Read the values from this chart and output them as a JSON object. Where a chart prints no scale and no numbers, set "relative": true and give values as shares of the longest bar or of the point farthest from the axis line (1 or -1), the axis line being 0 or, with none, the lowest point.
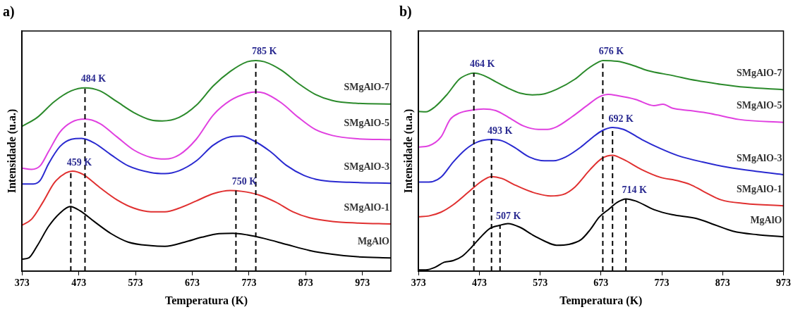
{
  "chart_data": [
    {
      "type": "line",
      "title": "a)",
      "xlabel": "Temperatura (K)",
      "ylabel": "Intensidade (u.a.)",
      "relative": true,
      "xlim": [
        373,
        1023
      ],
      "xticks": [
        373,
        473,
        573,
        673,
        773,
        873,
        973
      ],
      "legend": false,
      "grid": false,
      "marker": "none",
      "line_style": "solid",
      "series": [
        {
          "name": "SMgAlO-7",
          "color": "#2b8a2b",
          "x": [
            373,
            400,
            430,
            460,
            484,
            510,
            540,
            570,
            600,
            620,
            650,
            680,
            710,
            740,
            770,
            785,
            800,
            830,
            860,
            890,
            920,
            960,
            1023
          ],
          "values": [
            0.687,
            0.73,
            0.805,
            0.856,
            0.87,
            0.856,
            0.805,
            0.753,
            0.718,
            0.713,
            0.73,
            0.787,
            0.879,
            0.948,
            0.994,
            1.0,
            0.994,
            0.954,
            0.891,
            0.839,
            0.81,
            0.797,
            0.793
          ]
        },
        {
          "name": "SMgAlO-5",
          "color": "#e040e0",
          "x": [
            373,
            390,
            405,
            420,
            440,
            460,
            484,
            510,
            540,
            570,
            600,
            625,
            650,
            680,
            710,
            740,
            770,
            785,
            800,
            830,
            860,
            890,
            920,
            960,
            1023
          ],
          "values": [
            0.489,
            0.483,
            0.5,
            0.569,
            0.661,
            0.707,
            0.722,
            0.701,
            0.638,
            0.575,
            0.54,
            0.532,
            0.552,
            0.626,
            0.741,
            0.81,
            0.845,
            0.851,
            0.845,
            0.799,
            0.73,
            0.672,
            0.644,
            0.629,
            0.624
          ]
        },
        {
          "name": "SMgAlO-3",
          "color": "#2a2ad0",
          "x": [
            373,
            393,
            405,
            420,
            440,
            460,
            478,
            500,
            530,
            560,
            600,
            625,
            650,
            680,
            710,
            740,
            760,
            780,
            810,
            840,
            870,
            900,
            950,
            1023
          ],
          "values": [
            0.414,
            0.414,
            0.431,
            0.511,
            0.592,
            0.626,
            0.63,
            0.609,
            0.552,
            0.5,
            0.468,
            0.463,
            0.477,
            0.523,
            0.598,
            0.638,
            0.641,
            0.621,
            0.569,
            0.5,
            0.454,
            0.431,
            0.422,
            0.417
          ]
        },
        {
          "name": "SMgAlO-1",
          "color": "#e03030",
          "x": [
            373,
            390,
            410,
            430,
            450,
            462,
            480,
            510,
            540,
            570,
            600,
            625,
            650,
            680,
            710,
            740,
            760,
            790,
            820,
            850,
            880,
            920,
            960,
            1023
          ],
          "values": [
            0.218,
            0.247,
            0.328,
            0.42,
            0.466,
            0.475,
            0.46,
            0.397,
            0.339,
            0.299,
            0.282,
            0.282,
            0.299,
            0.333,
            0.368,
            0.383,
            0.379,
            0.362,
            0.328,
            0.282,
            0.253,
            0.236,
            0.229,
            0.224
          ]
        },
        {
          "name": "MgAlO",
          "color": "#000000",
          "x": [
            373,
            385,
            400,
            420,
            440,
            458,
            475,
            500,
            530,
            560,
            600,
            625,
            660,
            690,
            720,
            745,
            770,
            800,
            840,
            880,
            920,
            960,
            1023
          ],
          "values": [
            0.057,
            0.063,
            0.121,
            0.213,
            0.276,
            0.307,
            0.287,
            0.236,
            0.178,
            0.138,
            0.121,
            0.118,
            0.138,
            0.161,
            0.178,
            0.18,
            0.172,
            0.155,
            0.126,
            0.098,
            0.08,
            0.069,
            0.063
          ]
        }
      ],
      "ref_lines": [
        {
          "axis": "x",
          "value": 459,
          "line_style": "dashed",
          "color": "#000000"
        },
        {
          "axis": "x",
          "value": 484,
          "line_style": "dashed",
          "color": "#000000"
        },
        {
          "axis": "x",
          "value": 750,
          "line_style": "dashed",
          "color": "#000000"
        },
        {
          "axis": "x",
          "value": 785,
          "line_style": "dashed",
          "color": "#000000"
        }
      ],
      "annotations": [
        {
          "text": "459 K",
          "x": 459,
          "y": 0.475
        },
        {
          "text": "484 K",
          "x": 484,
          "y": 0.87
        },
        {
          "text": "750 K",
          "x": 750,
          "y": 0.383
        },
        {
          "text": "785 K",
          "x": 785,
          "y": 1.0
        }
      ]
    },
    {
      "type": "line",
      "title": "b)",
      "xlabel": "Temperatura (K)",
      "ylabel": "Intensidade (u.a.)",
      "relative": true,
      "xlim": [
        373,
        973
      ],
      "xticks": [
        373,
        473,
        573,
        673,
        773,
        873,
        973
      ],
      "legend": false,
      "grid": false,
      "marker": "none",
      "line_style": "solid",
      "series": [
        {
          "name": "SMgAlO-7",
          "color": "#2b8a2b",
          "x": [
            373,
            385,
            400,
            420,
            440,
            455,
            464,
            480,
            500,
            520,
            540,
            560,
            575,
            600,
            630,
            650,
            670,
            676,
            700,
            720,
            750,
            790,
            830,
            870,
            910,
            973
          ],
          "values": [
            0.758,
            0.756,
            0.78,
            0.839,
            0.911,
            0.935,
            0.94,
            0.929,
            0.899,
            0.869,
            0.845,
            0.837,
            0.839,
            0.863,
            0.911,
            0.958,
            0.994,
            1.0,
            0.996,
            0.982,
            0.952,
            0.929,
            0.905,
            0.887,
            0.873,
            0.861
          ]
        },
        {
          "name": "SMgAlO-5",
          "color": "#e040e0",
          "x": [
            373,
            390,
            410,
            425,
            440,
            460,
            480,
            500,
            520,
            545,
            570,
            585,
            600,
            625,
            650,
            670,
            685,
            700,
            730,
            760,
            775,
            790,
            820,
            850,
            900,
            973
          ],
          "values": [
            0.589,
            0.595,
            0.637,
            0.72,
            0.75,
            0.764,
            0.77,
            0.762,
            0.732,
            0.69,
            0.673,
            0.673,
            0.685,
            0.732,
            0.786,
            0.827,
            0.839,
            0.833,
            0.815,
            0.786,
            0.792,
            0.774,
            0.762,
            0.75,
            0.72,
            0.706
          ]
        },
        {
          "name": "SMgAlO-3",
          "color": "#2a2ad0",
          "x": [
            373,
            390,
            410,
            430,
            450,
            470,
            493,
            510,
            530,
            555,
            580,
            595,
            615,
            640,
            660,
            675,
            692,
            710,
            740,
            770,
            800,
            840,
            880,
            930,
            973
          ],
          "values": [
            0.423,
            0.423,
            0.446,
            0.518,
            0.577,
            0.613,
            0.625,
            0.619,
            0.589,
            0.542,
            0.524,
            0.524,
            0.542,
            0.589,
            0.637,
            0.667,
            0.682,
            0.673,
            0.625,
            0.583,
            0.548,
            0.518,
            0.494,
            0.473,
            0.458
          ]
        },
        {
          "name": "SMgAlO-1",
          "color": "#e03030",
          "x": [
            373,
            390,
            410,
            430,
            455,
            475,
            493,
            510,
            530,
            560,
            590,
            610,
            630,
            655,
            675,
            692,
            710,
            740,
            770,
            800,
            820,
            840,
            870,
            910,
            973
          ],
          "values": [
            0.258,
            0.262,
            0.28,
            0.315,
            0.375,
            0.423,
            0.449,
            0.44,
            0.411,
            0.375,
            0.357,
            0.363,
            0.399,
            0.482,
            0.536,
            0.55,
            0.53,
            0.482,
            0.446,
            0.429,
            0.411,
            0.381,
            0.339,
            0.321,
            0.31
          ]
        },
        {
          "name": "MgAlO",
          "color": "#000000",
          "x": [
            373,
            385,
            400,
            415,
            430,
            445,
            460,
            475,
            490,
            507,
            520,
            540,
            560,
            580,
            600,
            620,
            640,
            655,
            670,
            685,
            700,
            714,
            730,
            760,
            790,
            830,
            860,
            890,
            930,
            973
          ],
          "values": [
            0.006,
            0.006,
            0.018,
            0.042,
            0.05,
            0.071,
            0.113,
            0.161,
            0.202,
            0.218,
            0.226,
            0.208,
            0.173,
            0.143,
            0.123,
            0.127,
            0.149,
            0.196,
            0.256,
            0.292,
            0.327,
            0.343,
            0.333,
            0.292,
            0.268,
            0.25,
            0.22,
            0.19,
            0.173,
            0.163
          ]
        }
      ],
      "ref_lines": [
        {
          "axis": "x",
          "value": 464,
          "line_style": "dashed",
          "color": "#000000"
        },
        {
          "axis": "x",
          "value": 493,
          "line_style": "dashed",
          "color": "#000000"
        },
        {
          "axis": "x",
          "value": 507,
          "line_style": "dashed",
          "color": "#000000"
        },
        {
          "axis": "x",
          "value": 676,
          "line_style": "dashed",
          "color": "#000000"
        },
        {
          "axis": "x",
          "value": 692,
          "line_style": "dashed",
          "color": "#000000"
        },
        {
          "axis": "x",
          "value": 714,
          "line_style": "dashed",
          "color": "#000000"
        }
      ],
      "annotations": [
        {
          "text": "464 K",
          "x": 464,
          "y": 0.94
        },
        {
          "text": "493 K",
          "x": 493,
          "y": 0.625
        },
        {
          "text": "507 K",
          "x": 507,
          "y": 0.218
        },
        {
          "text": "676 K",
          "x": 676,
          "y": 1.0
        },
        {
          "text": "692 K",
          "x": 692,
          "y": 0.682
        },
        {
          "text": "714 K",
          "x": 714,
          "y": 0.343
        }
      ]
    }
  ]
}
